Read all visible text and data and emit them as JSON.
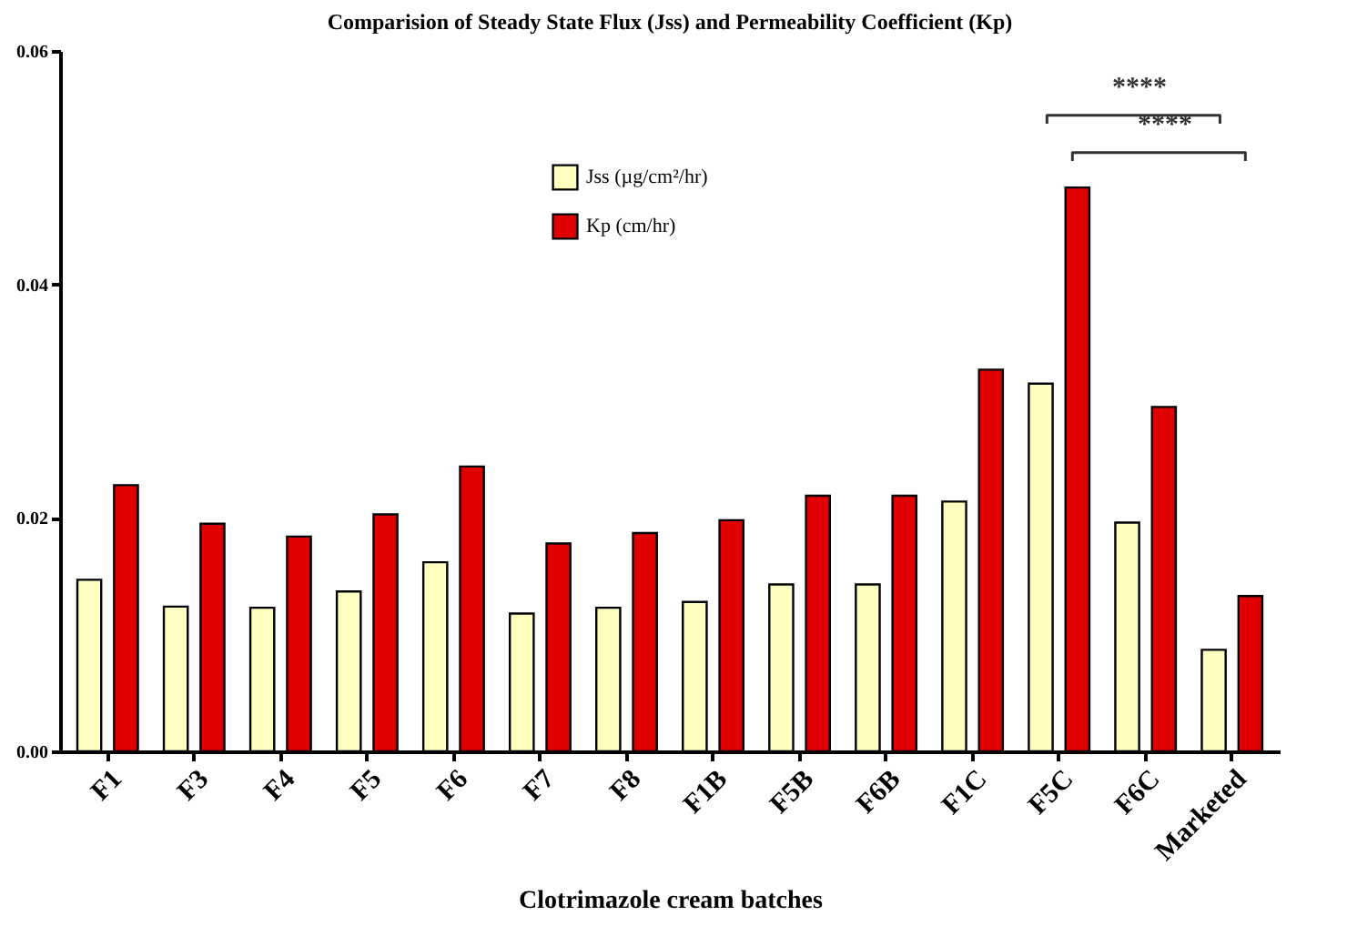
{
  "chart_data": {
    "type": "bar",
    "title": "Comparision of Steady State Flux (Jss) and Permeability Coefficient (Kp)",
    "xlabel": "Clotrimazole cream batches",
    "categories": [
      "F1",
      "F3",
      "F4",
      "F5",
      "F6",
      "F7",
      "F8",
      "F1B",
      "F5B",
      "F6B",
      "F1C",
      "F5C",
      "F6C",
      "Marketed"
    ],
    "series": [
      {
        "name": "Jss (µg/cm²/hr)",
        "color": "#ffffc0",
        "values": [
          0.0147,
          0.0124,
          0.0123,
          0.0137,
          0.0162,
          0.0118,
          0.0123,
          0.0128,
          0.0143,
          0.0143,
          0.0214,
          0.0315,
          0.0196,
          0.0087
        ]
      },
      {
        "name": "Kp (cm/hr)",
        "color": "#e00000",
        "values": [
          0.0228,
          0.0195,
          0.0184,
          0.0203,
          0.0244,
          0.0178,
          0.0187,
          0.0198,
          0.0219,
          0.0219,
          0.0327,
          0.0483,
          0.0295,
          0.0133
        ]
      }
    ],
    "ylim": [
      0,
      0.06
    ],
    "yticks": [
      {
        "value": 0,
        "label": "0.00"
      },
      {
        "value": 0.02,
        "label": "0.02"
      },
      {
        "value": 0.04,
        "label": "0.04"
      },
      {
        "value": 0.06,
        "label": "0.06"
      }
    ],
    "legend": "top",
    "annotations": [
      "****",
      "****"
    ]
  }
}
